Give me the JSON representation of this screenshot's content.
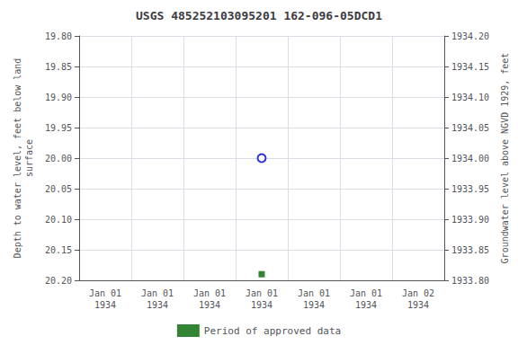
{
  "chart_data": {
    "type": "scatter",
    "title": "USGS 485252103095201 162-096-05DCD1",
    "x_label": null,
    "y_label": "Depth to water level, feet below land\nsurface",
    "y2_label": "Groundwater level above NGVD 1929, feet",
    "categories": [
      "Jan 01\n1934",
      "Jan 01\n1934",
      "Jan 01\n1934",
      "Jan 01\n1934",
      "Jan 01\n1934",
      "Jan 01\n1934",
      "Jan 02\n1934"
    ],
    "series": [
      {
        "color": "#0000cc",
        "marker": "open_circle",
        "values": [
          null,
          null,
          null,
          20.0,
          null,
          null,
          null
        ]
      },
      {
        "name": "Period of approved data",
        "color": "#006600",
        "marker": "square",
        "values": [
          null,
          null,
          null,
          20.19,
          null,
          null,
          null
        ]
      }
    ],
    "ylim": [
      20.2,
      19.8
    ],
    "yticks": [
      {
        "value": 19.8,
        "label": "19.80"
      },
      {
        "value": 19.85,
        "label": "19.85"
      },
      {
        "value": 19.9,
        "label": "19.90"
      },
      {
        "value": 19.95,
        "label": "19.95"
      },
      {
        "value": 20.0,
        "label": "20.00"
      },
      {
        "value": 20.05,
        "label": "20.05"
      },
      {
        "value": 20.1,
        "label": "20.10"
      },
      {
        "value": 20.15,
        "label": "20.15"
      },
      {
        "value": 20.2,
        "label": "20.20"
      }
    ],
    "y2lim": [
      1933.8,
      1934.2
    ],
    "y2ticks": [
      {
        "value": 1934.2,
        "label": "1934.20"
      },
      {
        "value": 1934.15,
        "label": "1934.15"
      },
      {
        "value": 1934.1,
        "label": "1934.10"
      },
      {
        "value": 1934.05,
        "label": "1934.05"
      },
      {
        "value": 1934.0,
        "label": "1934.00"
      },
      {
        "value": 1933.95,
        "label": "1933.95"
      },
      {
        "value": 1933.9,
        "label": "1933.90"
      },
      {
        "value": 1933.85,
        "label": "1933.85"
      },
      {
        "value": 1933.8,
        "label": "1933.80"
      }
    ],
    "grid": true,
    "legend": "bottom"
  }
}
